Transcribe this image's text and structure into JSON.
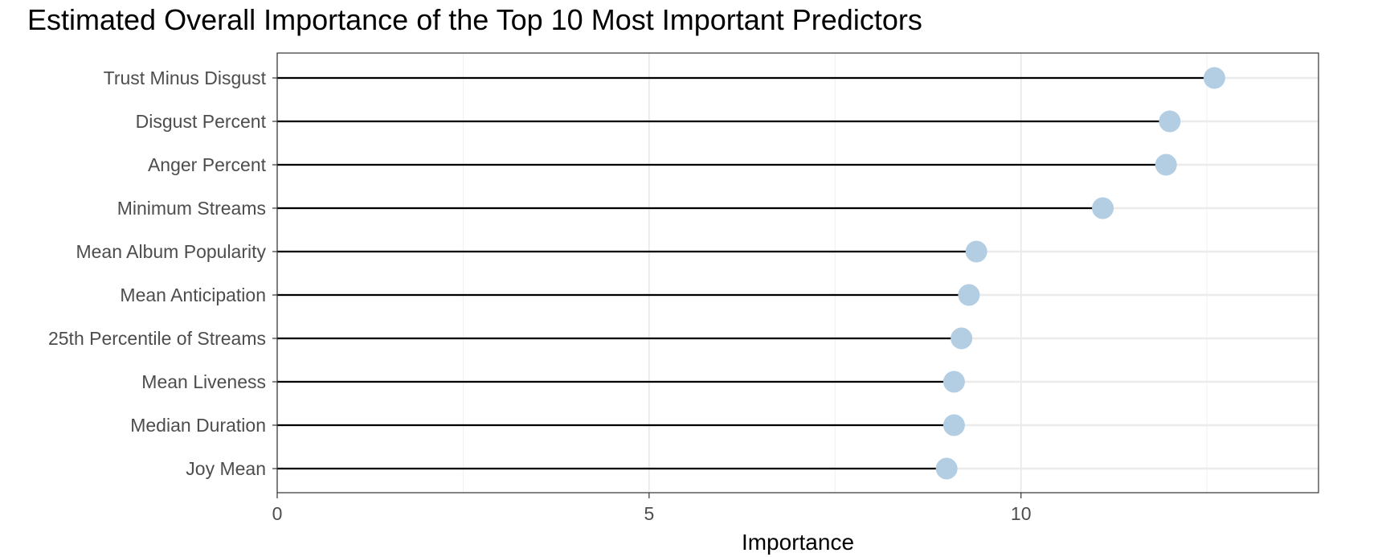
{
  "chart_data": {
    "type": "lollipop",
    "title": "Estimated Overall Importance of the Top 10 Most Important Predictors",
    "xlabel": "Importance",
    "ylabel": "",
    "xlim": [
      0,
      14
    ],
    "x_ticks": [
      0,
      5,
      10
    ],
    "grid": true,
    "point_color": "#b3cde3",
    "stem_color": "#000000",
    "categories": [
      "Trust Minus Disgust",
      "Disgust Percent",
      "Anger Percent",
      "Minimum Streams",
      "Mean Album Popularity",
      "Mean Anticipation",
      "25th Percentile of Streams",
      "Mean Liveness",
      "Median Duration",
      "Joy Mean"
    ],
    "values": [
      12.6,
      12.0,
      11.95,
      11.1,
      9.4,
      9.3,
      9.2,
      9.1,
      9.1,
      9.0
    ]
  }
}
